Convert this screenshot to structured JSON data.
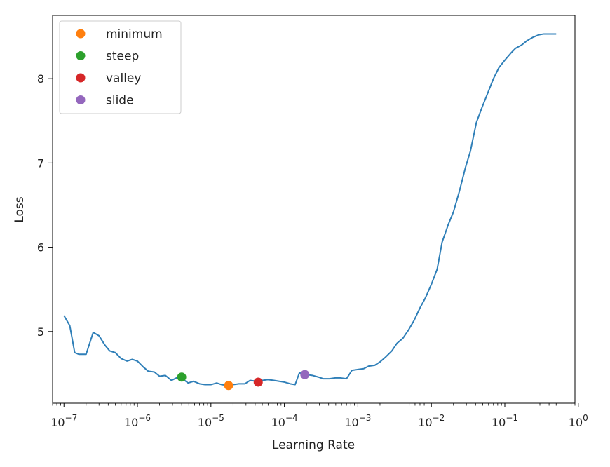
{
  "chart_data": {
    "type": "line",
    "title": "",
    "xlabel": "Learning Rate",
    "ylabel": "Loss",
    "x_scale": "log",
    "xlim": [
      7e-08,
      0.9
    ],
    "ylim": [
      4.15,
      8.75
    ],
    "x_ticks": [
      {
        "value": 1e-07,
        "base": "10",
        "exp": "−7"
      },
      {
        "value": 1e-06,
        "base": "10",
        "exp": "−6"
      },
      {
        "value": 1e-05,
        "base": "10",
        "exp": "−5"
      },
      {
        "value": 0.0001,
        "base": "10",
        "exp": "−4"
      },
      {
        "value": 0.001,
        "base": "10",
        "exp": "−3"
      },
      {
        "value": 0.01,
        "base": "10",
        "exp": "−2"
      },
      {
        "value": 0.1,
        "base": "10",
        "exp": "−1"
      },
      {
        "value": 1,
        "base": "10",
        "exp": "0"
      }
    ],
    "y_ticks": [
      {
        "value": 5,
        "label": "5"
      },
      {
        "value": 6,
        "label": "6"
      },
      {
        "value": 7,
        "label": "7"
      },
      {
        "value": 8,
        "label": "8"
      }
    ],
    "grid": false,
    "legend_position": "top-left",
    "line_color": "#2f7fb8",
    "series": [
      {
        "color": "#2f7fb8",
        "x": [
          1e-07,
          1.2e-07,
          1.4e-07,
          1.6e-07,
          2e-07,
          2.5e-07,
          3e-07,
          3.6e-07,
          4.2e-07,
          5e-07,
          6e-07,
          7.2e-07,
          8.5e-07,
          1e-06,
          1.2e-06,
          1.4e-06,
          1.7e-06,
          2e-06,
          2.4e-06,
          2.9e-06,
          3.4e-06,
          4.1e-06,
          4.9e-06,
          5.8e-06,
          7e-06,
          8.3e-06,
          1e-05,
          1.2e-05,
          1.4e-05,
          1.7e-05,
          2e-05,
          2.4e-05,
          2.9e-05,
          3.4e-05,
          4.2e-05,
          5e-05,
          6e-05,
          7.2e-05,
          8.5e-05,
          0.0001,
          0.00012,
          0.00014,
          0.00016,
          0.0002,
          0.00024,
          0.00029,
          0.00034,
          0.00041,
          0.00049,
          0.00058,
          0.0007,
          0.00083,
          0.001,
          0.0012,
          0.0014,
          0.0017,
          0.002,
          0.0024,
          0.0029,
          0.0034,
          0.0041,
          0.0049,
          0.0058,
          0.007,
          0.0083,
          0.01,
          0.012,
          0.014,
          0.017,
          0.02,
          0.024,
          0.029,
          0.034,
          0.041,
          0.049,
          0.058,
          0.07,
          0.083,
          0.1,
          0.12,
          0.14,
          0.17,
          0.2,
          0.24,
          0.29,
          0.34,
          0.41,
          0.5
        ],
        "y": [
          5.19,
          5.07,
          4.75,
          4.73,
          4.73,
          4.99,
          4.95,
          4.84,
          4.77,
          4.75,
          4.68,
          4.65,
          4.67,
          4.65,
          4.58,
          4.53,
          4.52,
          4.47,
          4.48,
          4.42,
          4.45,
          4.44,
          4.39,
          4.41,
          4.38,
          4.37,
          4.37,
          4.39,
          4.37,
          4.36,
          4.37,
          4.38,
          4.38,
          4.42,
          4.41,
          4.42,
          4.43,
          4.42,
          4.41,
          4.4,
          4.38,
          4.37,
          4.51,
          4.49,
          4.48,
          4.46,
          4.44,
          4.44,
          4.45,
          4.45,
          4.44,
          4.54,
          4.55,
          4.56,
          4.59,
          4.6,
          4.64,
          4.7,
          4.77,
          4.86,
          4.92,
          5.02,
          5.13,
          5.28,
          5.4,
          5.56,
          5.74,
          6.06,
          6.27,
          6.42,
          6.66,
          6.94,
          7.14,
          7.48,
          7.66,
          7.82,
          8.0,
          8.13,
          8.22,
          8.3,
          8.36,
          8.4,
          8.45,
          8.49,
          8.52,
          8.53,
          8.53,
          8.53
        ]
      }
    ],
    "markers": [
      {
        "name": "minimum",
        "x": 1.74e-05,
        "y": 4.36,
        "color": "#ff7f0e"
      },
      {
        "name": "steep",
        "x": 4e-06,
        "y": 4.46,
        "color": "#2ca02c"
      },
      {
        "name": "valley",
        "x": 4.4e-05,
        "y": 4.4,
        "color": "#d62728"
      },
      {
        "name": "slide",
        "x": 0.00019,
        "y": 4.49,
        "color": "#9467bd"
      }
    ]
  }
}
